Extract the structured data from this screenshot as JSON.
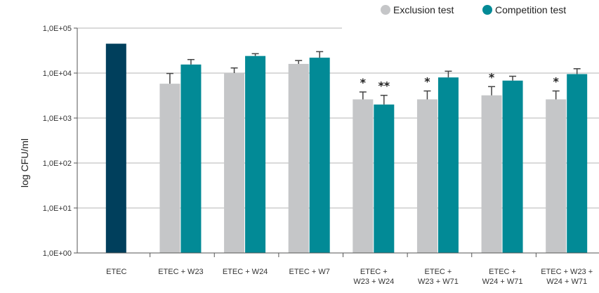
{
  "chart_data": {
    "type": "bar",
    "ylabel": "log CFU/ml",
    "yscale": "log",
    "ylim": [
      1,
      100000
    ],
    "yticks": [
      {
        "value": 1,
        "label": "1,0E+00"
      },
      {
        "value": 10,
        "label": "1,0E+01"
      },
      {
        "value": 100,
        "label": "1,0E+02"
      },
      {
        "value": 1000,
        "label": "1,0E+03"
      },
      {
        "value": 10000,
        "label": "1,0E+04"
      },
      {
        "value": 100000,
        "label": "1,0E+05"
      }
    ],
    "grid": true,
    "legend_position": "top-right",
    "categories": [
      [
        "ETEC"
      ],
      [
        "ETEC + W23"
      ],
      [
        "ETEC + W24"
      ],
      [
        "ETEC + W7"
      ],
      [
        "ETEC +",
        "W23 + W24"
      ],
      [
        "ETEC +",
        "W23 + W71"
      ],
      [
        "ETEC +",
        "W24 + W71"
      ],
      [
        "ETEC + W23 +",
        "W24 + W71"
      ]
    ],
    "control": {
      "category_index": 0,
      "value": 45000,
      "color": "#003f5c"
    },
    "series": [
      {
        "name": "Exclusion test",
        "color": "#c5c6c8",
        "values": [
          null,
          5800,
          10000,
          16000,
          2600,
          2600,
          3200,
          2600
        ],
        "errors": [
          null,
          9800,
          13000,
          19000,
          3800,
          4000,
          5000,
          4000
        ],
        "stars": [
          "",
          "",
          "",
          "",
          "*",
          "*",
          "*",
          "*"
        ]
      },
      {
        "name": "Competition test",
        "color": "#028a96",
        "values": [
          null,
          15500,
          24000,
          22000,
          2000,
          8000,
          6800,
          9500
        ],
        "errors": [
          null,
          20000,
          27000,
          30000,
          3200,
          11000,
          8500,
          12500
        ],
        "stars": [
          "",
          "",
          "",
          "",
          "**",
          "",
          "",
          ""
        ]
      }
    ]
  }
}
